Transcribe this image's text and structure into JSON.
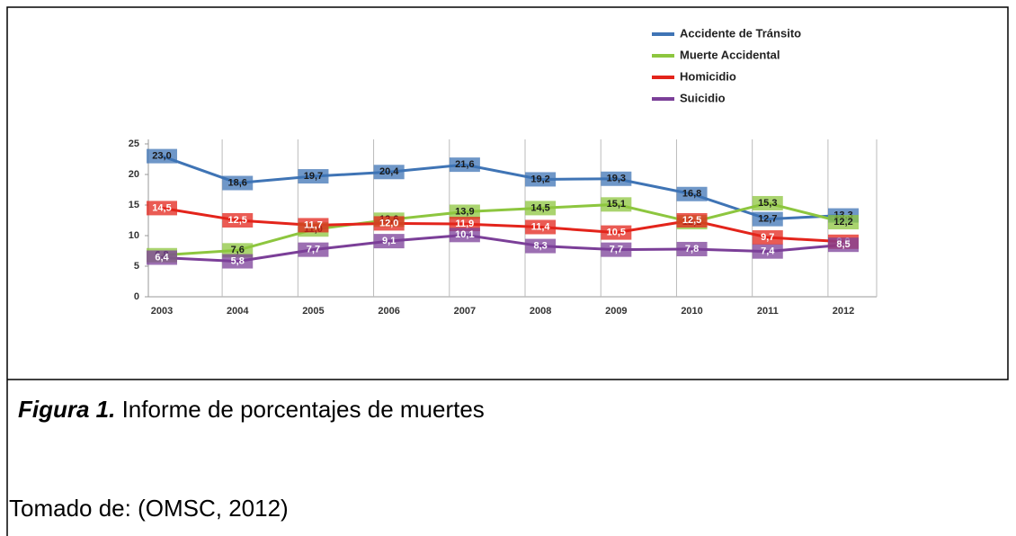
{
  "chart_data": {
    "type": "line",
    "categories": [
      "2003",
      "2004",
      "2005",
      "2006",
      "2007",
      "2008",
      "2009",
      "2010",
      "2011",
      "2012"
    ],
    "series": [
      {
        "name": "Accidente de Tránsito",
        "color": "#3f74b5",
        "values": [
          23.0,
          18.6,
          19.7,
          20.4,
          21.6,
          19.2,
          19.3,
          16.8,
          12.7,
          13.3
        ],
        "value_labels": [
          "23,0",
          "18,6",
          "19,7",
          "20,4",
          "21,6",
          "19,2",
          "19,3",
          "16,8",
          "12,7",
          "13,3"
        ]
      },
      {
        "name": "Muerte Accidental",
        "color": "#8dc63f",
        "values": [
          6.8,
          7.6,
          11.0,
          12.6,
          13.9,
          14.5,
          15.1,
          12.2,
          15.3,
          12.2
        ],
        "value_labels": [
          "6,8",
          "7,6",
          "11,0",
          "12,6",
          "13,9",
          "14,5",
          "15,1",
          "12,2",
          "15,3",
          "12,2"
        ]
      },
      {
        "name": "Homicidio",
        "color": "#e3241b",
        "values": [
          14.5,
          12.5,
          11.7,
          12.0,
          11.9,
          11.4,
          10.5,
          12.5,
          9.7,
          9.0
        ],
        "value_labels": [
          "14,5",
          "12,5",
          "11,7",
          "12,0",
          "11,9",
          "11,4",
          "10,5",
          "12,5",
          "9,7",
          "9,0"
        ]
      },
      {
        "name": "Suicidio",
        "color": "#7b3f98",
        "values": [
          6.4,
          5.8,
          7.7,
          9.1,
          10.1,
          8.3,
          7.7,
          7.8,
          7.4,
          8.5
        ],
        "value_labels": [
          "6,4",
          "5,8",
          "7,7",
          "9,1",
          "10,1",
          "8,3",
          "7,7",
          "7,8",
          "7,4",
          "8,5"
        ]
      }
    ],
    "ylim": [
      0,
      25
    ],
    "yticks": [
      0,
      5,
      10,
      15,
      20,
      25
    ],
    "grid": true,
    "legend": "top-right"
  },
  "caption": {
    "label": "Figura 1.",
    "text": " Informe de porcentajes de muertes"
  },
  "source": "Tomado de: (OMSC, 2012)"
}
